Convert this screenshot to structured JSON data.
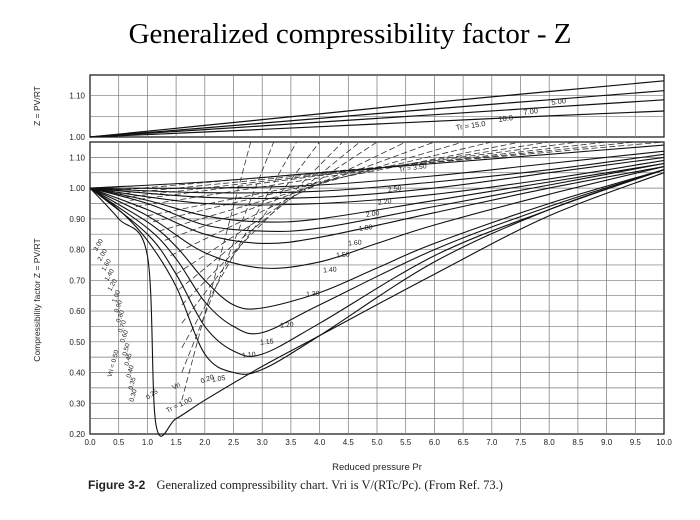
{
  "title": "Generalized compressibility factor - Z",
  "caption": {
    "figure": "Figure 3-2",
    "text": "Generalized compressibility chart. Vri is V/(RTc/Pc). (From Ref. 73.)"
  },
  "chart_data": [
    {
      "type": "line",
      "panel": "upper",
      "ylabel": "Z = PV/RT",
      "xlim": [
        0,
        10
      ],
      "ylim": [
        1.0,
        1.15
      ],
      "yticks": [
        "1.00",
        "1.10"
      ],
      "grid": true,
      "series": [
        {
          "name": "5.00",
          "x": [
            0,
            2,
            4,
            6,
            8,
            10
          ],
          "values": [
            1.0,
            1.028,
            1.056,
            1.084,
            1.11,
            1.136
          ]
        },
        {
          "name": "7.00",
          "x": [
            0,
            2,
            4,
            6,
            8,
            10
          ],
          "values": [
            1.0,
            1.022,
            1.045,
            1.068,
            1.09,
            1.112
          ]
        },
        {
          "name": "10.0",
          "x": [
            0,
            2,
            4,
            6,
            8,
            10
          ],
          "values": [
            1.0,
            1.018,
            1.036,
            1.054,
            1.072,
            1.09
          ]
        },
        {
          "name": "Tr = 15.0",
          "x": [
            0,
            2,
            4,
            6,
            8,
            10
          ],
          "values": [
            1.0,
            1.012,
            1.025,
            1.038,
            1.051,
            1.063
          ]
        }
      ],
      "series_labels": [
        "5.00",
        "7.00",
        "10.0",
        "Tr = 15.0"
      ]
    },
    {
      "type": "line",
      "panel": "lower",
      "title": "Generalized compressibility factor - Z",
      "xlabel": "Reduced pressure Pr",
      "ylabel": "Compressibility factor Z = PV/RT",
      "xlim": [
        0,
        10
      ],
      "ylim": [
        0.2,
        1.15
      ],
      "xticks": [
        "0.0",
        "0.5",
        "1.0",
        "1.5",
        "2.0",
        "2.5",
        "3.0",
        "3.5",
        "4.0",
        "4.5",
        "5.0",
        "5.5",
        "6.0",
        "6.5",
        "7.0",
        "7.5",
        "8.0",
        "8.5",
        "9.0",
        "9.5",
        "10.0"
      ],
      "yticks": [
        "0.20",
        "0.30",
        "0.40",
        "0.50",
        "0.60",
        "0.70",
        "0.80",
        "0.90",
        "1.00",
        "1.10"
      ],
      "grid": true,
      "series": [
        {
          "name": "Tr = 3.50",
          "x": [
            0,
            2,
            4,
            6,
            8,
            10
          ],
          "values": [
            1.0,
            1.02,
            1.05,
            1.08,
            1.11,
            1.14
          ]
        },
        {
          "name": "2.50",
          "x": [
            0,
            2,
            4,
            6,
            8,
            10
          ],
          "values": [
            1.0,
            1.0,
            1.01,
            1.04,
            1.08,
            1.12
          ]
        },
        {
          "name": "2.20",
          "x": [
            0,
            2,
            4,
            6,
            8,
            10
          ],
          "values": [
            1.0,
            0.985,
            0.99,
            1.02,
            1.06,
            1.11
          ]
        },
        {
          "name": "2.00",
          "x": [
            0,
            2,
            4,
            6,
            8,
            10
          ],
          "values": [
            1.0,
            0.97,
            0.97,
            1.0,
            1.05,
            1.1
          ]
        },
        {
          "name": "1.80",
          "x": [
            0,
            2,
            4,
            6,
            8,
            10
          ],
          "values": [
            1.0,
            0.95,
            0.95,
            0.98,
            1.03,
            1.09
          ]
        },
        {
          "name": "1.60",
          "x": [
            0,
            1,
            2,
            3,
            4,
            6,
            8,
            10
          ],
          "values": [
            1.0,
            0.96,
            0.91,
            0.89,
            0.9,
            0.96,
            1.02,
            1.08
          ]
        },
        {
          "name": "1.50",
          "x": [
            0,
            1,
            2,
            3,
            4,
            6,
            8,
            10
          ],
          "values": [
            1.0,
            0.95,
            0.88,
            0.86,
            0.87,
            0.94,
            1.01,
            1.08
          ]
        },
        {
          "name": "1.40",
          "x": [
            0,
            1,
            2,
            3,
            4,
            6,
            8,
            10
          ],
          "values": [
            1.0,
            0.93,
            0.85,
            0.82,
            0.84,
            0.92,
            1.0,
            1.07
          ]
        },
        {
          "name": "1.30",
          "x": [
            0,
            1,
            2,
            3,
            4,
            5,
            6,
            8,
            10
          ],
          "values": [
            1.0,
            0.91,
            0.79,
            0.74,
            0.76,
            0.82,
            0.88,
            0.98,
            1.07
          ]
        },
        {
          "name": "1.20",
          "x": [
            0,
            1,
            1.5,
            2,
            2.5,
            3,
            4,
            5,
            6,
            8,
            10
          ],
          "values": [
            1.0,
            0.89,
            0.81,
            0.7,
            0.62,
            0.61,
            0.66,
            0.74,
            0.82,
            0.95,
            1.06
          ]
        },
        {
          "name": "1.15",
          "x": [
            0,
            1,
            1.5,
            2,
            2.5,
            3,
            4,
            6,
            8,
            10
          ],
          "values": [
            1.0,
            0.87,
            0.77,
            0.63,
            0.55,
            0.53,
            0.62,
            0.8,
            0.94,
            1.06
          ]
        },
        {
          "name": "1.10",
          "x": [
            0,
            1,
            1.5,
            2,
            2.5,
            3,
            4,
            6,
            8,
            10
          ],
          "values": [
            1.0,
            0.85,
            0.72,
            0.55,
            0.47,
            0.46,
            0.56,
            0.78,
            0.93,
            1.06
          ]
        },
        {
          "name": "1.05",
          "x": [
            0,
            0.5,
            1,
            1.5,
            2,
            2.5,
            3,
            4,
            6,
            8,
            10
          ],
          "values": [
            1.0,
            0.93,
            0.83,
            0.68,
            0.46,
            0.4,
            0.41,
            0.52,
            0.76,
            0.93,
            1.06
          ]
        },
        {
          "name": "Tr = 1.00",
          "x": [
            0,
            0.5,
            1,
            1.15,
            1.5,
            2,
            3,
            4,
            6,
            8,
            10
          ],
          "values": [
            1.0,
            0.9,
            0.78,
            0.23,
            0.25,
            0.31,
            0.42,
            0.52,
            0.72,
            0.91,
            1.05
          ]
        }
      ],
      "dashed_vri_series": [
        {
          "name": "3.00",
          "x": [
            0.3,
            10
          ],
          "values": [
            0.99,
            1.15
          ]
        },
        {
          "name": "2.00",
          "x": [
            0.45,
            9.5
          ],
          "values": [
            0.98,
            1.15
          ]
        },
        {
          "name": "1.60",
          "x": [
            0.6,
            9
          ],
          "values": [
            0.97,
            1.15
          ]
        },
        {
          "name": "1.40",
          "x": [
            0.7,
            8.5
          ],
          "values": [
            0.96,
            1.15
          ]
        },
        {
          "name": "1.20",
          "x": [
            0.8,
            8
          ],
          "values": [
            0.94,
            1.15
          ]
        },
        {
          "name": "1.00",
          "x": [
            1.0,
            7.5
          ],
          "values": [
            0.91,
            1.15
          ]
        },
        {
          "name": "0.90",
          "x": [
            1.1,
            7
          ],
          "values": [
            0.89,
            1.15
          ]
        },
        {
          "name": "0.80",
          "x": [
            1.2,
            6.5
          ],
          "values": [
            0.86,
            1.15
          ]
        },
        {
          "name": "0.70",
          "x": [
            1.3,
            6
          ],
          "values": [
            0.83,
            1.15
          ]
        },
        {
          "name": "0.60",
          "x": [
            1.4,
            5.5
          ],
          "values": [
            0.78,
            1.15
          ]
        },
        {
          "name": "0.50",
          "x": [
            1.5,
            5
          ],
          "values": [
            0.72,
            1.15
          ]
        },
        {
          "name": "0.45",
          "x": [
            1.55,
            4.7
          ],
          "values": [
            0.67,
            1.15
          ]
        },
        {
          "name": "0.40",
          "x": [
            1.6,
            4.4
          ],
          "values": [
            0.62,
            1.15
          ]
        },
        {
          "name": "0.35",
          "x": [
            1.6,
            4.0
          ],
          "values": [
            0.56,
            1.15
          ]
        },
        {
          "name": "0.30",
          "x": [
            1.6,
            3.6
          ],
          "values": [
            0.48,
            1.15
          ]
        },
        {
          "name": "0.25",
          "x": [
            1.6,
            3.2
          ],
          "values": [
            0.4,
            1.15
          ]
        },
        {
          "name": "0.20",
          "x": [
            1.6,
            2.8
          ],
          "values": [
            0.31,
            1.15
          ]
        }
      ],
      "series_labels": [
        "Tr = 3.50",
        "2.50",
        "2.20",
        "2.00",
        "1.80",
        "1.60",
        "1.50",
        "1.40",
        "1.30",
        "1.20",
        "1.15",
        "1.10",
        "1.05",
        "Tr = 1.00",
        "Vri",
        "0.20"
      ],
      "vri_labels": [
        "3.00",
        "2.00",
        "1.60",
        "1.40",
        "1.20",
        "1.00",
        "0.90",
        "0.80",
        "0.70",
        "0.60",
        "0.50",
        "0.45",
        "0.40",
        "0.35",
        "0.30",
        "0.25",
        "Vri = 0.50"
      ]
    }
  ]
}
